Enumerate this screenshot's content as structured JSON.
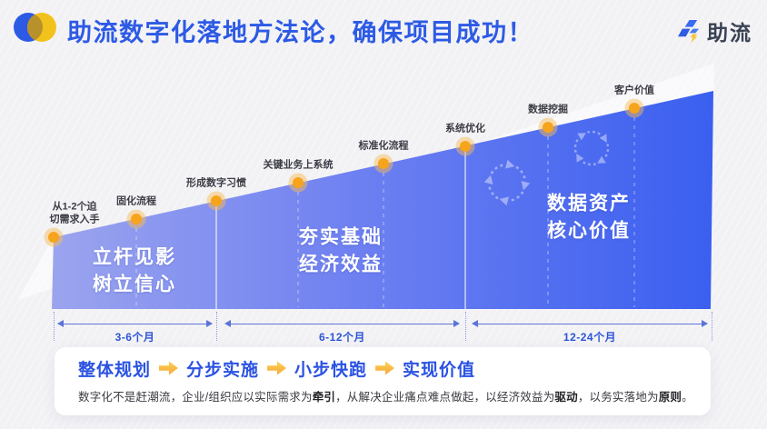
{
  "header": {
    "title": "助流数字化落地方法论，确保项目成功！",
    "brand_name": "助流"
  },
  "ramp": {
    "milestones": [
      {
        "label_lines": [
          "从1-2个迫",
          "切需求入手"
        ]
      },
      {
        "label_lines": [
          "固化流程"
        ]
      },
      {
        "label_lines": [
          "形成数字习惯"
        ]
      },
      {
        "label_lines": [
          "关键业务上系统"
        ]
      },
      {
        "label_lines": [
          "标准化流程"
        ]
      },
      {
        "label_lines": [
          "系统优化"
        ]
      },
      {
        "label_lines": [
          "数据挖掘"
        ]
      },
      {
        "label_lines": [
          "客户价值"
        ]
      }
    ],
    "sections": [
      {
        "title_lines": [
          "立杆见影",
          "树立信心"
        ],
        "duration": "3-6个月"
      },
      {
        "title_lines": [
          "夯实基础",
          "经济效益"
        ],
        "duration": "6-12个月"
      },
      {
        "title_lines": [
          "数据资产",
          "核心价值"
        ],
        "duration": "12-24个月"
      }
    ]
  },
  "footer": {
    "steps": [
      "整体规划",
      "分步实施",
      "小步快跑",
      "实现价值"
    ],
    "description_segments": [
      {
        "text": "数字化不是赶潮流，企业/组织应以实际需求为",
        "bold": false
      },
      {
        "text": "牵引",
        "bold": true
      },
      {
        "text": "，从解决企业痛点难点做起，以经济效益为",
        "bold": false
      },
      {
        "text": "驱动",
        "bold": true
      },
      {
        "text": "，以务实落地为",
        "bold": false
      },
      {
        "text": "原则",
        "bold": true
      },
      {
        "text": "。",
        "bold": false
      }
    ]
  },
  "colors": {
    "accent_blue": "#2d5ae5",
    "ramp_light": "#9ba4ee",
    "ramp_dark": "#3a5ff0",
    "milestone_dot": "#f7a41d",
    "step_arrow_start": "#fdd44e",
    "step_arrow_end": "#f6a13b"
  }
}
